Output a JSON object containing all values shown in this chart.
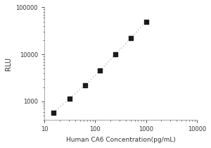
{
  "x_data": [
    15,
    31.25,
    62.5,
    125,
    250,
    500,
    1000
  ],
  "y_data": [
    580,
    1150,
    2200,
    4500,
    10000,
    22000,
    50000
  ],
  "xlabel": "Human CA6 Concentration(pg/mL)",
  "ylabel": "RLU",
  "xlim": [
    10,
    10000
  ],
  "ylim_bottom": 400,
  "ylim_top": 100000,
  "yticks": [
    1000,
    10000,
    100000
  ],
  "xticks": [
    10,
    100,
    1000,
    10000
  ],
  "line_color": "#cccccc",
  "marker_color": "#1a1a1a",
  "marker_size": 18,
  "bg_color": "#ffffff",
  "xlabel_fontsize": 6.5,
  "ylabel_fontsize": 7,
  "tick_fontsize": 6,
  "tick_color": "#333333",
  "spine_color": "#999999"
}
